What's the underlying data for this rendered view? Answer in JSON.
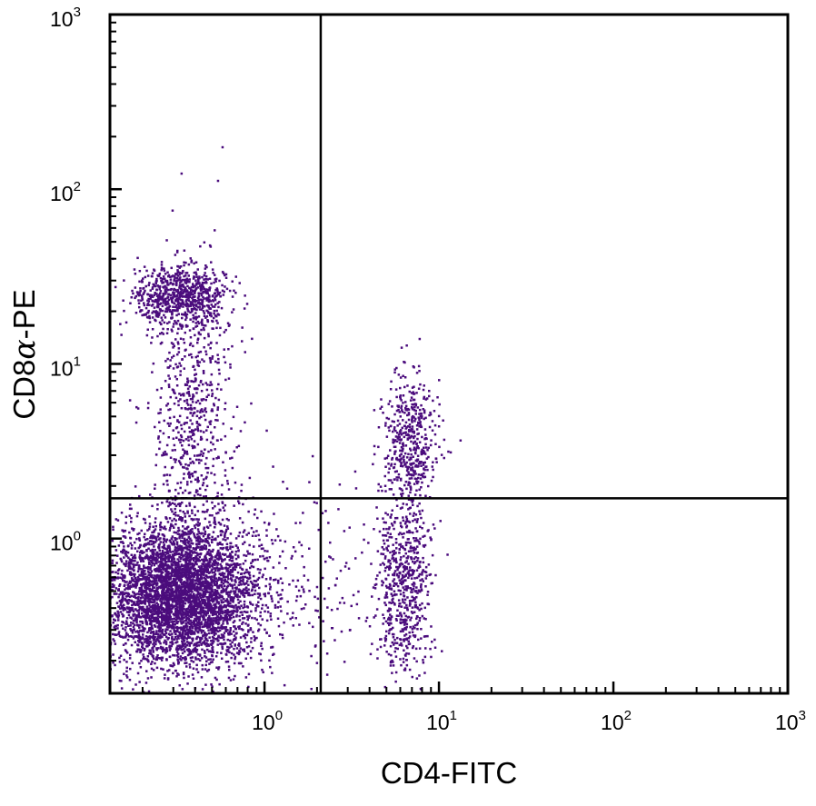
{
  "chart_data": {
    "type": "scatter",
    "title": "",
    "xlabel": "CD4-FITC",
    "ylabel_parts": [
      "CD8",
      "α",
      "-PE"
    ],
    "x_scale": "log",
    "y_scale": "log",
    "xlim": [
      0.13,
      1000
    ],
    "ylim": [
      0.13,
      1000
    ],
    "x_ticks": [
      {
        "base": "10",
        "exp": "0"
      },
      {
        "base": "10",
        "exp": "1"
      },
      {
        "base": "10",
        "exp": "2"
      },
      {
        "base": "10",
        "exp": "3"
      }
    ],
    "y_ticks": [
      {
        "base": "10",
        "exp": "0"
      },
      {
        "base": "10",
        "exp": "1"
      },
      {
        "base": "10",
        "exp": "2"
      },
      {
        "base": "10",
        "exp": "3"
      }
    ],
    "quadrant_gate": {
      "x": 2.1,
      "y": 1.7
    },
    "point_color": "#4b0c7d",
    "grid": false,
    "legend": "none",
    "populations": [
      {
        "name": "",
        "center": [
          0.33,
          0.48
        ],
        "spread_log": [
          0.22,
          0.2
        ],
        "count": 4500
      },
      {
        "name": "",
        "center": [
          0.33,
          24
        ],
        "spread_log": [
          0.13,
          0.09
        ],
        "count": 750
      },
      {
        "name": "",
        "center": [
          0.38,
          4.5
        ],
        "spread_log": [
          0.12,
          0.45
        ],
        "count": 700
      },
      {
        "name": "",
        "center": [
          6.8,
          3.6
        ],
        "spread_log": [
          0.08,
          0.18
        ],
        "count": 480
      },
      {
        "name": "",
        "center": [
          6.3,
          0.55
        ],
        "spread_log": [
          0.08,
          0.24
        ],
        "count": 620
      },
      {
        "name": "",
        "center": [
          1.3,
          0.55
        ],
        "spread_log": [
          0.32,
          0.3
        ],
        "count": 250
      }
    ]
  }
}
